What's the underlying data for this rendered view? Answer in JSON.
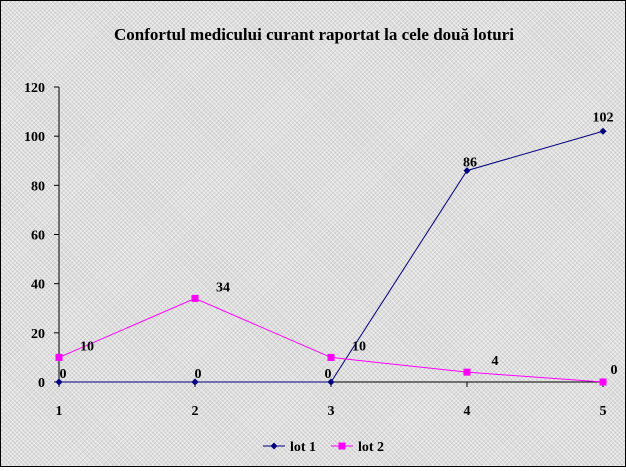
{
  "chart_data": {
    "type": "line",
    "title": "Confortul medicului curant raportat la cele două loturi",
    "xlabel": "",
    "ylabel": "",
    "categories": [
      "1",
      "2",
      "3",
      "4",
      "5"
    ],
    "ylim": [
      0,
      120
    ],
    "yticks": [
      "0",
      "20",
      "40",
      "60",
      "80",
      "100",
      "120"
    ],
    "grid": false,
    "legend": "bottom",
    "series": [
      {
        "name": "lot 1",
        "values": [
          0,
          0,
          0,
          86,
          102
        ],
        "labels": [
          "0",
          "0",
          "0",
          "86",
          "102"
        ],
        "color": "#000080",
        "marker": "diamond"
      },
      {
        "name": "lot 2",
        "values": [
          10,
          34,
          10,
          4,
          0
        ],
        "labels": [
          "10",
          "34",
          "10",
          "4",
          "0"
        ],
        "color": "#ff00ff",
        "marker": "square"
      }
    ]
  }
}
